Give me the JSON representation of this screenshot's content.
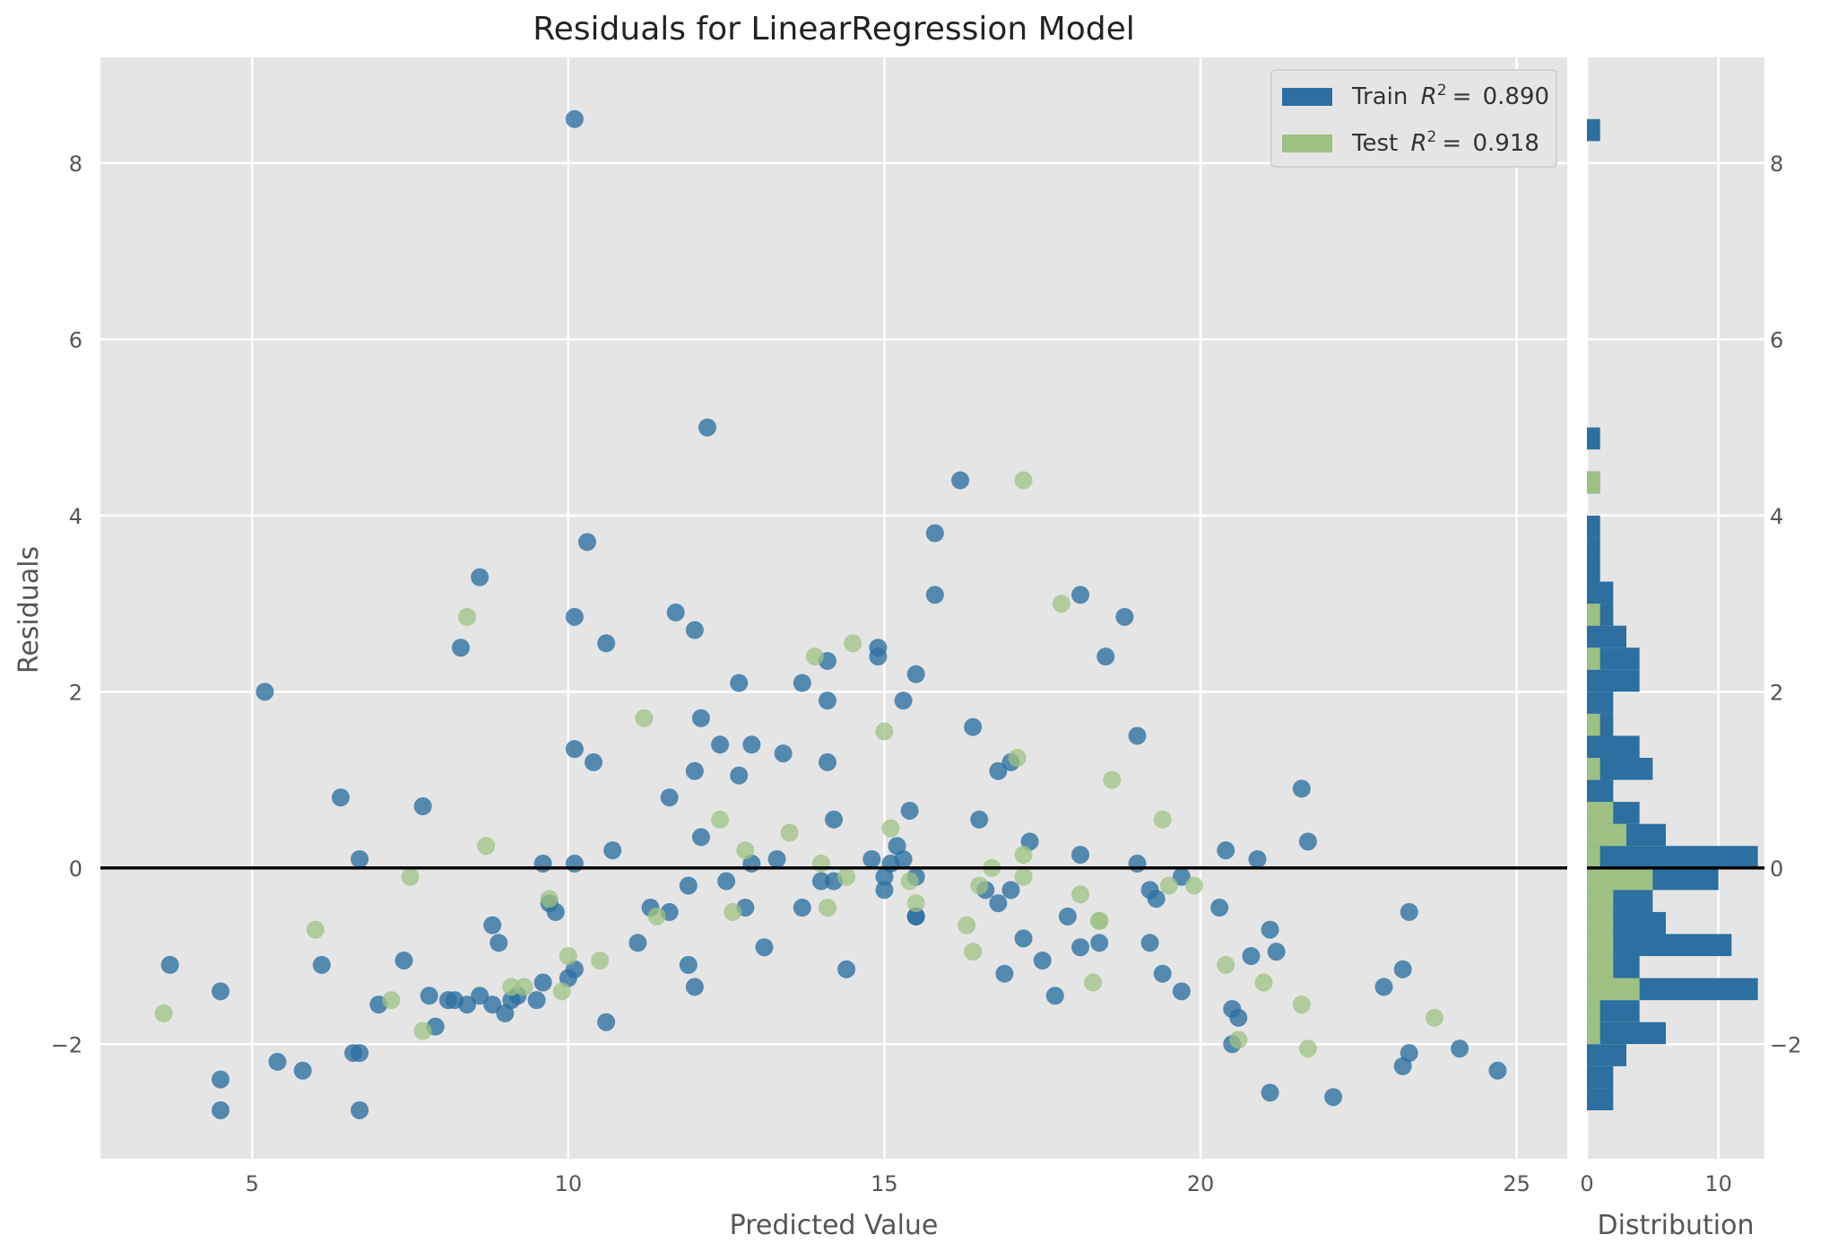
{
  "chart_data": {
    "type": "scatter",
    "title": "Residuals for LinearRegression Model",
    "xlabel": "Predicted Value",
    "ylabel": "Residuals",
    "xlim": [
      2.6,
      25.8
    ],
    "ylim": [
      -3.3,
      9.2
    ],
    "xticks": [
      5,
      10,
      15,
      20,
      25
    ],
    "yticks": [
      -2,
      0,
      2,
      4,
      6,
      8
    ],
    "grid": true,
    "legend_position": "top-right",
    "colors": {
      "train": "#2c6fa0",
      "test": "#9dc183",
      "zero_line": "#000000",
      "background": "#e5e5e5",
      "grid": "#ffffff"
    },
    "legend": [
      {
        "key": "train",
        "name": "Train",
        "value": "0.890"
      },
      {
        "key": "test",
        "name": "Test",
        "value": "0.918"
      }
    ],
    "series": [
      {
        "name": "Train",
        "x": [
          10.1,
          12.2,
          16.2,
          15.8,
          10.3,
          8.6,
          15.8,
          11.7,
          12.0,
          18.1,
          10.1,
          18.8,
          10.6,
          8.3,
          14.9,
          14.9,
          18.5,
          14.1,
          12.7,
          13.7,
          5.2,
          15.5,
          15.3,
          14.1,
          12.1,
          16.4,
          19.0,
          12.4,
          12.9,
          10.1,
          13.4,
          10.4,
          17.0,
          16.8,
          14.1,
          12.0,
          12.7,
          21.6,
          6.4,
          11.6,
          7.7,
          15.4,
          14.2,
          16.5,
          15.2,
          21.7,
          17.3,
          12.1,
          10.7,
          13.3,
          6.7,
          18.1,
          20.4,
          20.9,
          15.3,
          12.9,
          14.8,
          10.1,
          9.6,
          19.0,
          15.1,
          15.0,
          15.5,
          19.7,
          16.6,
          14.0,
          12.5,
          11.9,
          14.2,
          17.0,
          19.2,
          15.0,
          15.5,
          16.8,
          19.3,
          13.7,
          12.8,
          11.3,
          11.6,
          17.9,
          23.3,
          20.3,
          9.7,
          9.8,
          8.8,
          21.1,
          15.5,
          8.9,
          17.2,
          11.1,
          19.2,
          18.4,
          13.1,
          18.1,
          21.2,
          7.4,
          3.7,
          20.8,
          17.5,
          11.9,
          14.4,
          10.1,
          6.1,
          23.2,
          19.4,
          16.9,
          9.6,
          10.0,
          12.0,
          4.5,
          22.9,
          19.7,
          17.7,
          8.1,
          7.8,
          9.2,
          8.6,
          9.1,
          7.0,
          8.4,
          8.2,
          9.5,
          8.8,
          20.5,
          9.0,
          20.6,
          10.6,
          7.9,
          6.6,
          6.7,
          20.5,
          23.3,
          24.1,
          5.4,
          23.2,
          24.7,
          5.8,
          4.5,
          21.1,
          22.1,
          4.5,
          6.7
        ],
        "y": [
          8.5,
          5.0,
          4.4,
          3.8,
          3.7,
          3.3,
          3.1,
          2.9,
          2.7,
          3.1,
          2.85,
          2.85,
          2.55,
          2.5,
          2.5,
          2.4,
          2.4,
          2.35,
          2.1,
          2.1,
          2.0,
          2.2,
          1.9,
          1.9,
          1.7,
          1.6,
          1.5,
          1.4,
          1.4,
          1.35,
          1.3,
          1.2,
          1.2,
          1.1,
          1.2,
          1.1,
          1.05,
          0.9,
          0.8,
          0.8,
          0.7,
          0.65,
          0.55,
          0.55,
          0.25,
          0.3,
          0.3,
          0.35,
          0.2,
          0.1,
          0.1,
          0.15,
          0.2,
          0.1,
          0.1,
          0.05,
          0.1,
          0.05,
          0.05,
          0.05,
          0.05,
          -0.1,
          -0.1,
          -0.1,
          -0.25,
          -0.15,
          -0.15,
          -0.2,
          -0.15,
          -0.25,
          -0.25,
          -0.25,
          -0.55,
          -0.4,
          -0.35,
          -0.45,
          -0.45,
          -0.45,
          -0.5,
          -0.55,
          -0.5,
          -0.45,
          -0.4,
          -0.5,
          -0.65,
          -0.7,
          -0.55,
          -0.85,
          -0.8,
          -0.85,
          -0.85,
          -0.85,
          -0.9,
          -0.9,
          -0.95,
          -1.05,
          -1.1,
          -1.0,
          -1.05,
          -1.1,
          -1.15,
          -1.15,
          -1.1,
          -1.15,
          -1.2,
          -1.2,
          -1.3,
          -1.25,
          -1.35,
          -1.4,
          -1.35,
          -1.4,
          -1.45,
          -1.5,
          -1.45,
          -1.45,
          -1.45,
          -1.5,
          -1.55,
          -1.55,
          -1.5,
          -1.5,
          -1.55,
          -1.6,
          -1.65,
          -1.7,
          -1.75,
          -1.8,
          -2.1,
          -2.1,
          -2.0,
          -2.1,
          -2.05,
          -2.2,
          -2.25,
          -2.3,
          -2.3,
          -2.4,
          -2.55,
          -2.6,
          -2.75,
          -2.75
        ]
      },
      {
        "name": "Test",
        "x": [
          17.2,
          17.8,
          8.4,
          14.5,
          13.9,
          11.2,
          15.0,
          17.1,
          18.6,
          12.4,
          19.4,
          13.5,
          15.1,
          8.7,
          12.8,
          17.2,
          16.7,
          7.5,
          14.4,
          16.5,
          17.2,
          15.4,
          19.9,
          19.5,
          18.1,
          15.5,
          14.1,
          9.7,
          12.6,
          11.4,
          18.4,
          16.3,
          6.0,
          16.4,
          10.5,
          10.0,
          20.4,
          9.1,
          9.3,
          18.3,
          21.0,
          9.9,
          21.6,
          7.2,
          7.7,
          20.6,
          21.7,
          23.7,
          3.6,
          18.4,
          14.0
        ],
        "y": [
          4.4,
          3.0,
          2.85,
          2.55,
          2.4,
          1.7,
          1.55,
          1.25,
          1.0,
          0.55,
          0.55,
          0.4,
          0.45,
          0.25,
          0.2,
          0.15,
          0.0,
          -0.1,
          -0.1,
          -0.2,
          -0.1,
          -0.15,
          -0.2,
          -0.2,
          -0.3,
          -0.4,
          -0.45,
          -0.35,
          -0.5,
          -0.55,
          -0.6,
          -0.65,
          -0.7,
          -0.95,
          -1.05,
          -1.0,
          -1.1,
          -1.35,
          -1.35,
          -1.3,
          -1.3,
          -1.4,
          -1.55,
          -1.5,
          -1.85,
          -1.95,
          -2.05,
          -1.7,
          -1.65,
          -0.6,
          0.05
        ]
      }
    ],
    "histogram": {
      "xlabel": "Distribution",
      "xticks": [
        0,
        10
      ],
      "xlim": [
        0,
        13.5
      ],
      "bin_width": 0.25,
      "train_bins": [
        {
          "y0": -2.75,
          "count": 2
        },
        {
          "y0": -2.5,
          "count": 2
        },
        {
          "y0": -2.25,
          "count": 3
        },
        {
          "y0": -2.0,
          "count": 6
        },
        {
          "y0": -1.75,
          "count": 4
        },
        {
          "y0": -1.5,
          "count": 13
        },
        {
          "y0": -1.25,
          "count": 4
        },
        {
          "y0": -1.0,
          "count": 11
        },
        {
          "y0": -0.75,
          "count": 6
        },
        {
          "y0": -0.5,
          "count": 5
        },
        {
          "y0": -0.25,
          "count": 10
        },
        {
          "y0": 0.0,
          "count": 13
        },
        {
          "y0": 0.25,
          "count": 6
        },
        {
          "y0": 0.5,
          "count": 4
        },
        {
          "y0": 0.75,
          "count": 2
        },
        {
          "y0": 1.0,
          "count": 5
        },
        {
          "y0": 1.25,
          "count": 4
        },
        {
          "y0": 1.5,
          "count": 2
        },
        {
          "y0": 1.75,
          "count": 2
        },
        {
          "y0": 2.0,
          "count": 4
        },
        {
          "y0": 2.25,
          "count": 4
        },
        {
          "y0": 2.5,
          "count": 3
        },
        {
          "y0": 2.75,
          "count": 2
        },
        {
          "y0": 3.0,
          "count": 2
        },
        {
          "y0": 3.25,
          "count": 1
        },
        {
          "y0": 3.5,
          "count": 1
        },
        {
          "y0": 3.75,
          "count": 1
        },
        {
          "y0": 4.25,
          "count": 1
        },
        {
          "y0": 4.75,
          "count": 1
        },
        {
          "y0": 8.25,
          "count": 1
        }
      ],
      "test_bins": [
        {
          "y0": -2.0,
          "count": 1
        },
        {
          "y0": -1.75,
          "count": 1
        },
        {
          "y0": -1.5,
          "count": 4
        },
        {
          "y0": -1.25,
          "count": 2
        },
        {
          "y0": -1.0,
          "count": 2
        },
        {
          "y0": -0.75,
          "count": 2
        },
        {
          "y0": -0.5,
          "count": 2
        },
        {
          "y0": -0.25,
          "count": 5
        },
        {
          "y0": 0.0,
          "count": 1
        },
        {
          "y0": 0.25,
          "count": 3
        },
        {
          "y0": 0.5,
          "count": 2
        },
        {
          "y0": 1.0,
          "count": 1
        },
        {
          "y0": 1.5,
          "count": 1
        },
        {
          "y0": 2.25,
          "count": 1
        },
        {
          "y0": 2.75,
          "count": 1
        },
        {
          "y0": 4.25,
          "count": 1
        }
      ]
    }
  }
}
